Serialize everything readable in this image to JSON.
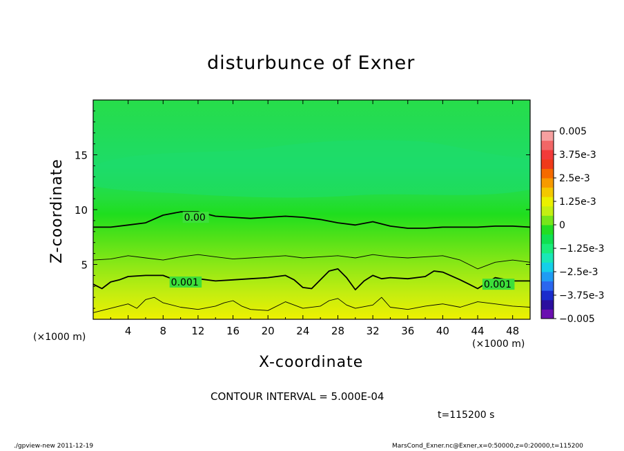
{
  "chart_data": {
    "type": "heatmap",
    "title": "disturbunce of Exner",
    "xlabel": "X-coordinate",
    "ylabel": "Z-coordinate",
    "x_unit": "(×1000 m)",
    "xlim": [
      0,
      50
    ],
    "ylim": [
      0,
      20
    ],
    "x_ticks": [
      4,
      8,
      12,
      16,
      20,
      24,
      28,
      32,
      36,
      40,
      44,
      48
    ],
    "y_ticks": [
      5,
      10,
      15
    ],
    "colorbar": {
      "range": [
        -0.005,
        0.005
      ],
      "labels": [
        "0.005",
        "3.75e-3",
        "2.5e-3",
        "1.25e-3",
        "0",
        "−1.25e-3",
        "−2.5e-3",
        "−3.75e-3",
        "−0.005"
      ],
      "colors": [
        "#6a0fb0",
        "#2a0e9e",
        "#1a2ccc",
        "#2a66ee",
        "#1f9cf4",
        "#15cfe8",
        "#19e7b6",
        "#1aec7a",
        "#10e050",
        "#22dd22",
        "#77e61a",
        "#c4ef12",
        "#eaf000",
        "#f4c800",
        "#f79a00",
        "#f56a00",
        "#ef3a1a",
        "#f23a3a",
        "#f26666",
        "#f7a0a0"
      ]
    },
    "contour_interval": "CONTOUR INTERVAL = 5.000E-04",
    "contour_labels": [
      {
        "text": "0.00",
        "level": 0.0
      },
      {
        "text": "0.001",
        "level": 0.001
      },
      {
        "text": "0.001",
        "level": 0.001
      }
    ],
    "contours": [
      {
        "level": 0.0,
        "x": [
          0,
          2,
          4,
          6,
          8,
          10,
          12,
          14,
          16,
          18,
          20,
          22,
          24,
          26,
          28,
          30,
          32,
          34,
          36,
          38,
          40,
          42,
          44,
          46,
          48,
          50
        ],
        "y": [
          8.4,
          8.4,
          8.6,
          8.8,
          9.5,
          9.8,
          9.8,
          9.4,
          9.3,
          9.2,
          9.3,
          9.4,
          9.3,
          9.1,
          8.8,
          8.6,
          8.9,
          8.5,
          8.3,
          8.3,
          8.4,
          8.4,
          8.4,
          8.5,
          8.5,
          8.4
        ]
      },
      {
        "level": 0.0005,
        "x": [
          0,
          2,
          4,
          6,
          8,
          10,
          12,
          14,
          16,
          18,
          20,
          22,
          24,
          26,
          28,
          30,
          32,
          34,
          36,
          38,
          40,
          42,
          44,
          46,
          48,
          50
        ],
        "y": [
          5.4,
          5.5,
          5.8,
          5.6,
          5.4,
          5.7,
          5.9,
          5.7,
          5.5,
          5.6,
          5.7,
          5.8,
          5.6,
          5.7,
          5.8,
          5.6,
          5.9,
          5.7,
          5.6,
          5.7,
          5.8,
          5.4,
          4.6,
          5.2,
          5.4,
          5.2
        ]
      },
      {
        "level": 0.001,
        "x": [
          0,
          1,
          2,
          3,
          4,
          6,
          8,
          9,
          10,
          12,
          14,
          16,
          18,
          20,
          22,
          23,
          24,
          25,
          27,
          28,
          29,
          30,
          31,
          32,
          33,
          34,
          36,
          38,
          39,
          40,
          42,
          43,
          44,
          46,
          48,
          50
        ],
        "y": [
          3.2,
          2.8,
          3.4,
          3.6,
          3.9,
          4.0,
          4.0,
          3.7,
          3.8,
          3.7,
          3.5,
          3.6,
          3.7,
          3.8,
          4.0,
          3.6,
          2.9,
          2.8,
          4.4,
          4.6,
          3.8,
          2.7,
          3.5,
          4.0,
          3.7,
          3.8,
          3.7,
          3.9,
          4.4,
          4.3,
          3.6,
          3.2,
          2.8,
          3.8,
          3.5,
          3.5
        ]
      },
      {
        "level": 0.0015,
        "x": [
          0,
          2,
          4,
          5,
          6,
          7,
          8,
          10,
          12,
          14,
          15,
          16,
          17,
          18,
          20,
          22,
          24,
          26,
          27,
          28,
          29,
          30,
          32,
          33,
          34,
          36,
          38,
          40,
          42,
          44,
          46,
          48,
          50
        ],
        "y": [
          0.6,
          1.0,
          1.4,
          1.0,
          1.8,
          2.0,
          1.5,
          1.1,
          0.9,
          1.2,
          1.5,
          1.7,
          1.2,
          0.9,
          0.8,
          1.6,
          1.0,
          1.2,
          1.7,
          1.9,
          1.3,
          1.0,
          1.3,
          2.0,
          1.1,
          0.9,
          1.2,
          1.4,
          1.1,
          1.6,
          1.4,
          1.2,
          1.1
        ]
      }
    ]
  },
  "annotations": {
    "time": "t=115200 s",
    "footer_left": "./gpview-new   2011-12-19",
    "footer_right": "MarsCond_Exner.nc@Exner,x=0:50000,z=0:20000,t=115200"
  }
}
